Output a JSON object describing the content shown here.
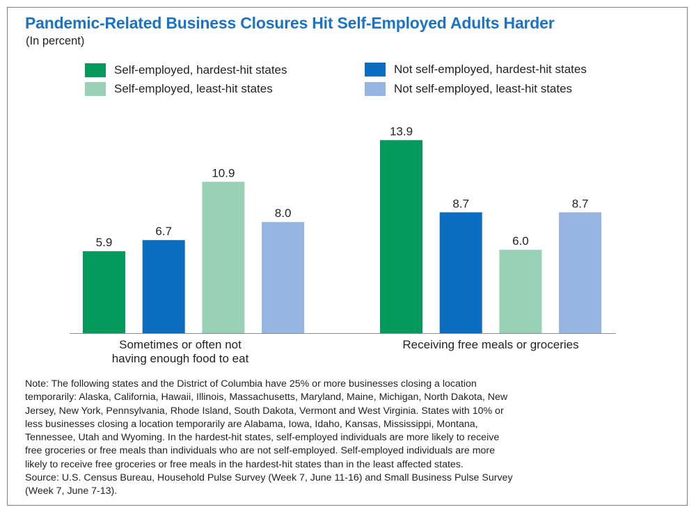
{
  "title": "Pandemic-Related Business Closures Hit Self-Employed Adults Harder",
  "subtitle": "(In percent)",
  "chart_data": {
    "type": "bar",
    "title": "Pandemic-Related Business Closures Hit Self-Employed Adults Harder",
    "subtitle": "(In percent)",
    "categories": [
      [
        "Sometimes or often not",
        "having enough food to eat"
      ],
      [
        "Receiving free meals or groceries"
      ]
    ],
    "series": [
      {
        "name": "Self-employed, hardest-hit states",
        "color": "#049a5e",
        "values": [
          5.9,
          13.9
        ]
      },
      {
        "name": "Not self-employed, hardest-hit states",
        "color": "#0b6dbf",
        "values": [
          6.7,
          8.7
        ]
      },
      {
        "name": "Self-employed, least-hit states",
        "color": "#99d1b6",
        "values": [
          10.9,
          6.0
        ]
      },
      {
        "name": "Not self-employed, least-hit states",
        "color": "#97b5e1",
        "values": [
          8.0,
          8.7
        ]
      }
    ],
    "ylim": [
      0,
      17.06
    ],
    "grid": false,
    "legend_position": "top"
  },
  "legend": [
    {
      "label": "Self-employed, hardest-hit states",
      "color": "#049a5e"
    },
    {
      "label": "Self-employed, least-hit states",
      "color": "#99d1b6"
    },
    {
      "label": "Not self-employed, hardest-hit states",
      "color": "#0b6dbf"
    },
    {
      "label": "Not self-employed, least-hit states",
      "color": "#97b5e1"
    }
  ],
  "note_lines": [
    "Note: The following states and the District of Columbia have 25% or more businesses closing a location",
    "temporarily: Alaska, California, Hawaii, Illinois, Massachusetts, Maryland, Maine, Michigan, North Dakota, New",
    "Jersey, New York, Pennsylvania, Rhode Island, South Dakota, Vermont and West Virginia. States with 10% or",
    "less businesses closing a location temporarily are Alabama, Iowa, Idaho, Kansas, Mississippi, Montana,",
    "Tennessee, Utah and Wyoming. In the hardest-hit states, self-employed individuals are more likely to receive",
    "free groceries or free meals than individuals who are not self-employed. Self-employed individuals are more",
    "likely to receive free groceries or free meals in the hardest-hit states than in the least affected states.",
    "Source: U.S. Census Bureau, Household Pulse Survey (Week 7, June 11-16) and Small Business Pulse Survey",
    "(Week 7, June 7-13)."
  ]
}
